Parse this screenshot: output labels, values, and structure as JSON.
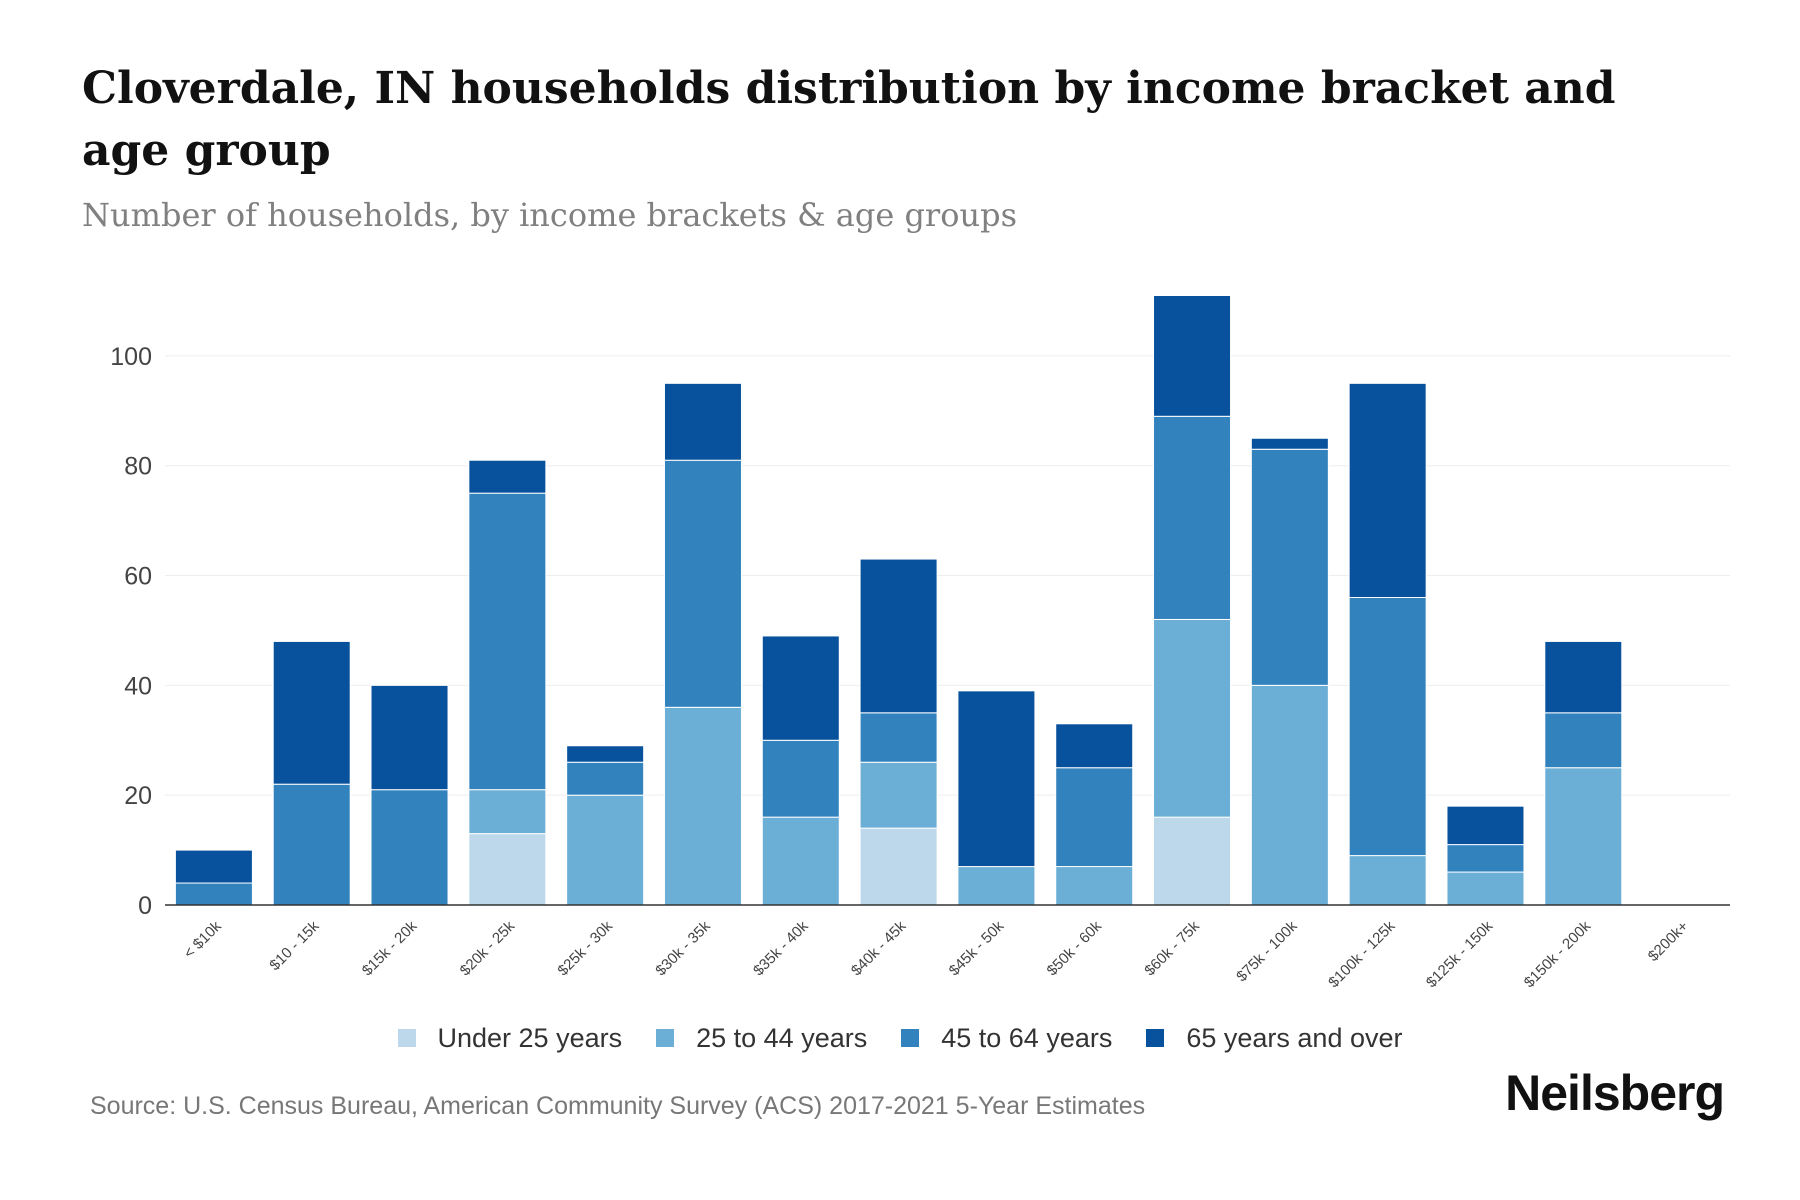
{
  "header": {
    "title": "Cloverdale, IN households distribution by income bracket and age group",
    "subtitle": "Number of households, by income brackets & age groups"
  },
  "footer": {
    "source": "Source: U.S. Census Bureau, American Community Survey (ACS) 2017-2021 5-Year Estimates",
    "brand": "Neilsberg"
  },
  "colors": {
    "under25": "#bcd8ea",
    "age25to44": "#6baed6",
    "age45to64": "#3282bd",
    "age65plus": "#08519c",
    "grid": "#eeeeee",
    "axis": "#333333",
    "tick_text": "#444444"
  },
  "chart_data": {
    "type": "bar",
    "stacked": true,
    "categories": [
      "< $10k",
      "$10 - 15k",
      "$15k - 20k",
      "$20k - 25k",
      "$25k - 30k",
      "$30k - 35k",
      "$35k - 40k",
      "$40k - 45k",
      "$45k - 50k",
      "$50k - 60k",
      "$60k - 75k",
      "$75k - 100k",
      "$100k - 125k",
      "$125k - 150k",
      "$150k - 200k",
      "$200k+"
    ],
    "series": [
      {
        "name": "Under 25 years",
        "color": "#bcd8ea",
        "values": [
          0,
          0,
          0,
          13,
          0,
          0,
          0,
          14,
          0,
          0,
          16,
          0,
          0,
          0,
          0,
          0
        ]
      },
      {
        "name": "25 to 44 years",
        "color": "#6baed6",
        "values": [
          0,
          0,
          0,
          8,
          20,
          36,
          16,
          12,
          7,
          7,
          36,
          40,
          9,
          6,
          25,
          0
        ]
      },
      {
        "name": "45 to 64 years",
        "color": "#3282bd",
        "values": [
          4,
          22,
          21,
          54,
          6,
          45,
          14,
          9,
          0,
          18,
          37,
          43,
          47,
          5,
          10,
          0
        ]
      },
      {
        "name": "65 years and over",
        "color": "#08519c",
        "values": [
          6,
          26,
          19,
          6,
          3,
          14,
          19,
          28,
          32,
          8,
          22,
          2,
          39,
          7,
          13,
          0
        ]
      }
    ],
    "title": "Cloverdale, IN households distribution by income bracket and age group",
    "subtitle": "Number of households, by income brackets & age groups",
    "xlabel": "",
    "ylabel": "",
    "ylim": [
      0,
      112
    ],
    "yticks": [
      0,
      20,
      40,
      60,
      80,
      100
    ],
    "grid": true,
    "legend_position": "bottom"
  }
}
